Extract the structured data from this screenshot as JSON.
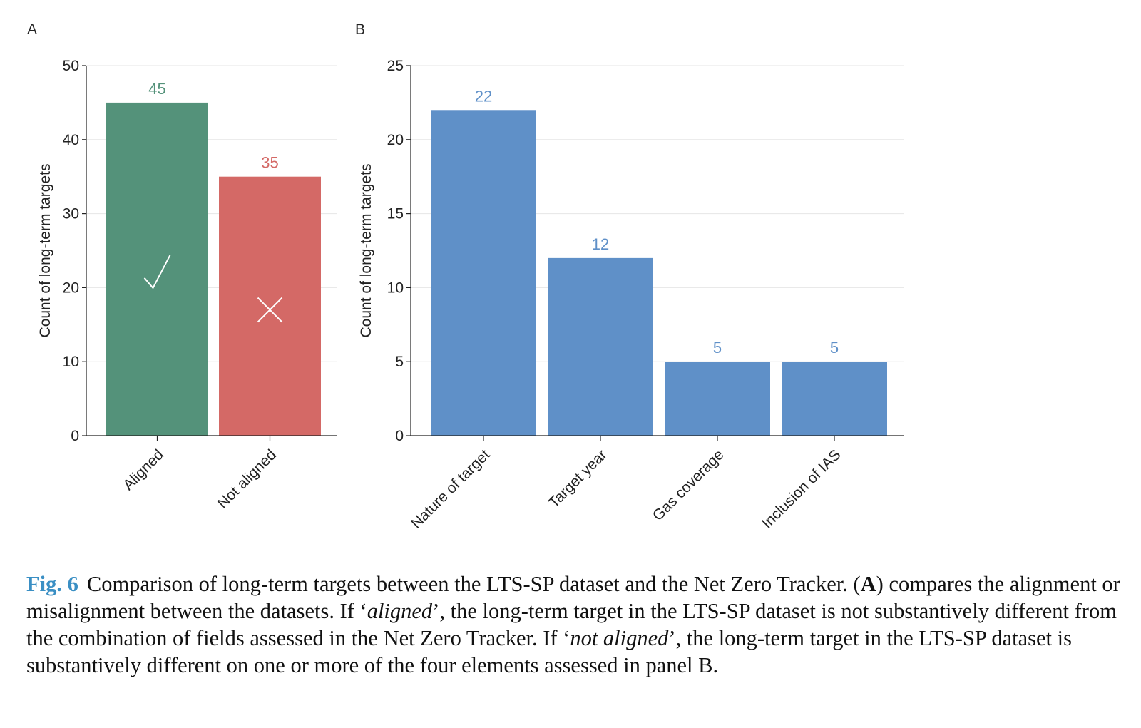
{
  "colors": {
    "aligned": "#54927a",
    "not_aligned": "#d46966",
    "panel_b": "#5f90c8",
    "grid": "#e6e6e6",
    "axis": "#222222",
    "fig_label": "#3a8fc4"
  },
  "panel_a": {
    "letter": "A",
    "icons": [
      "check-icon",
      "cross-icon"
    ]
  },
  "panel_b": {
    "letter": "B"
  },
  "chart_data": [
    {
      "type": "bar",
      "panel": "A",
      "categories": [
        "Aligned",
        "Not aligned"
      ],
      "values": [
        45,
        35
      ],
      "value_labels": [
        "45",
        "35"
      ],
      "ylabel": "Count of long-term targets",
      "ylim": [
        0,
        50
      ],
      "yticks": [
        0,
        10,
        20,
        30,
        40,
        50
      ],
      "colors": [
        "#54927a",
        "#d46966"
      ],
      "grid": true
    },
    {
      "type": "bar",
      "panel": "B",
      "categories": [
        "Nature of target",
        "Target year",
        "Gas coverage",
        "Inclusion of IAS"
      ],
      "values": [
        22,
        12,
        5,
        5
      ],
      "value_labels": [
        "22",
        "12",
        "5",
        "5"
      ],
      "ylabel": "Count of long-term targets",
      "ylim": [
        0,
        25
      ],
      "yticks": [
        0,
        5,
        10,
        15,
        20,
        25
      ],
      "colors": [
        "#5f90c8",
        "#5f90c8",
        "#5f90c8",
        "#5f90c8"
      ],
      "grid": true
    }
  ],
  "caption": {
    "fig_label": "Fig. 6",
    "seg1": "Comparison of long-term targets between the LTS-SP dataset and the Net Zero Tracker. (",
    "seg1_bold": "A",
    "seg2": ") compares the alignment or misalignment between the datasets. If ‘",
    "seg2_italic": "aligned",
    "seg3": "’, the long-term target in the LTS-SP dataset is not substantively different from the combination of fields assessed in the Net Zero Tracker. If ‘",
    "seg3_italic": "not aligned",
    "seg4": "’, the long-term target in the LTS-SP dataset is substantively different on one or more of the four elements assessed in panel B."
  }
}
